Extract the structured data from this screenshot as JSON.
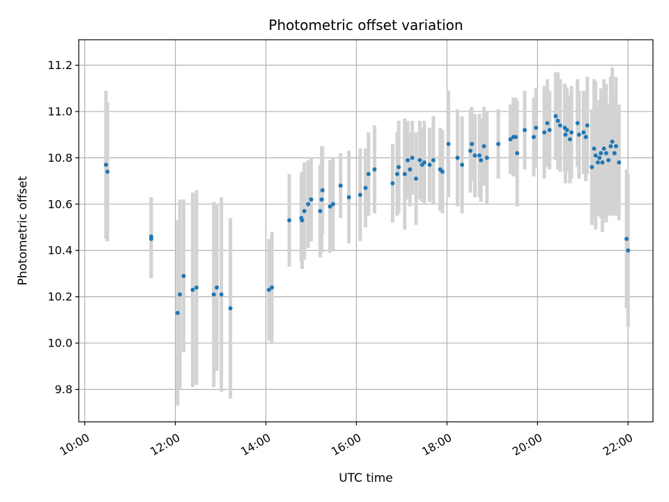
{
  "chart_data": {
    "type": "scatter",
    "title": "Photometric offset variation",
    "xlabel": "UTC time",
    "ylabel": "Photometric offset",
    "x_ticks": [
      "10:00",
      "12:00",
      "14:00",
      "16:00",
      "18:00",
      "20:00",
      "22:00"
    ],
    "y_ticks": [
      "9.8",
      "10.0",
      "10.2",
      "10.4",
      "10.6",
      "10.8",
      "11.0",
      "11.2"
    ],
    "xlim": [
      "09:52",
      "22:33"
    ],
    "ylim": [
      9.66,
      11.31
    ],
    "grid": true,
    "point_color": "#1f77b4",
    "errorbar_color": "#d3d3d3",
    "series": [
      {
        "x": [
          "10:28",
          "10:30",
          "11:28",
          "11:28",
          "12:03",
          "12:06",
          "12:11",
          "12:23",
          "12:28",
          "12:51",
          "12:55",
          "13:01",
          "13:13",
          "14:04",
          "14:08",
          "14:31",
          "14:47",
          "14:48",
          "14:51",
          "14:56",
          "15:00",
          "15:12",
          "15:14",
          "15:15",
          "15:25",
          "15:29",
          "15:39",
          "15:50",
          "16:05",
          "16:12",
          "16:16",
          "16:24",
          "16:48",
          "16:54",
          "16:56",
          "17:04",
          "17:08",
          "17:11",
          "17:14",
          "17:19",
          "17:24",
          "17:27",
          "17:30",
          "17:37",
          "17:42",
          "17:51",
          "17:54",
          "18:02",
          "18:14",
          "18:20",
          "18:31",
          "18:33",
          "18:37",
          "18:43",
          "18:45",
          "18:49",
          "18:53",
          "19:08",
          "19:24",
          "19:28",
          "19:31",
          "19:33",
          "19:43",
          "19:55",
          "19:58",
          "20:09",
          "20:13",
          "20:16",
          "20:24",
          "20:27",
          "20:30",
          "20:36",
          "20:37",
          "20:39",
          "20:43",
          "20:45",
          "20:53",
          "20:55",
          "21:01",
          "21:04",
          "21:06",
          "21:12",
          "21:15",
          "21:17",
          "21:20",
          "21:22",
          "21:24",
          "21:26",
          "21:28",
          "21:31",
          "21:34",
          "21:37",
          "21:39",
          "21:42",
          "21:44",
          "21:48",
          "21:58",
          "22:00"
        ],
        "y": [
          10.77,
          10.74,
          10.46,
          10.45,
          10.13,
          10.21,
          10.29,
          10.23,
          10.24,
          10.21,
          10.24,
          10.21,
          10.15,
          10.23,
          10.24,
          10.53,
          10.54,
          10.53,
          10.57,
          10.6,
          10.62,
          10.57,
          10.62,
          10.66,
          10.59,
          10.6,
          10.68,
          10.63,
          10.64,
          10.67,
          10.73,
          10.75,
          10.69,
          10.73,
          10.76,
          10.73,
          10.79,
          10.75,
          10.8,
          10.71,
          10.79,
          10.77,
          10.78,
          10.77,
          10.79,
          10.75,
          10.74,
          10.86,
          10.8,
          10.77,
          10.83,
          10.86,
          10.81,
          10.81,
          10.79,
          10.85,
          10.8,
          10.86,
          10.88,
          10.89,
          10.89,
          10.82,
          10.92,
          10.89,
          10.93,
          10.91,
          10.95,
          10.92,
          10.98,
          10.96,
          10.94,
          10.93,
          10.9,
          10.92,
          10.88,
          10.91,
          10.95,
          10.9,
          10.91,
          10.89,
          10.94,
          10.76,
          10.84,
          10.81,
          10.78,
          10.8,
          10.82,
          10.78,
          10.84,
          10.82,
          10.79,
          10.85,
          10.87,
          10.82,
          10.85,
          10.78,
          10.45,
          10.4
        ],
        "err": [
          0.32,
          0.3,
          0.17,
          0.17,
          0.4,
          0.41,
          0.33,
          0.42,
          0.42,
          0.4,
          0.36,
          0.42,
          0.39,
          0.22,
          0.24,
          0.2,
          0.19,
          0.21,
          0.21,
          0.19,
          0.18,
          0.2,
          0.23,
          0.19,
          0.2,
          0.2,
          0.14,
          0.2,
          0.2,
          0.17,
          0.18,
          0.19,
          0.17,
          0.18,
          0.2,
          0.24,
          0.17,
          0.16,
          0.16,
          0.2,
          0.17,
          0.16,
          0.18,
          0.16,
          0.19,
          0.18,
          0.18,
          0.23,
          0.21,
          0.21,
          0.18,
          0.16,
          0.18,
          0.18,
          0.18,
          0.17,
          0.2,
          0.15,
          0.15,
          0.17,
          0.17,
          0.23,
          0.17,
          0.17,
          0.17,
          0.2,
          0.19,
          0.17,
          0.19,
          0.21,
          0.2,
          0.19,
          0.21,
          0.18,
          0.19,
          0.2,
          0.19,
          0.19,
          0.18,
          0.19,
          0.21,
          0.25,
          0.3,
          0.32,
          0.23,
          0.25,
          0.28,
          0.3,
          0.3,
          0.3,
          0.24,
          0.3,
          0.32,
          0.26,
          0.3,
          0.25,
          0.3,
          0.33
        ]
      }
    ]
  }
}
